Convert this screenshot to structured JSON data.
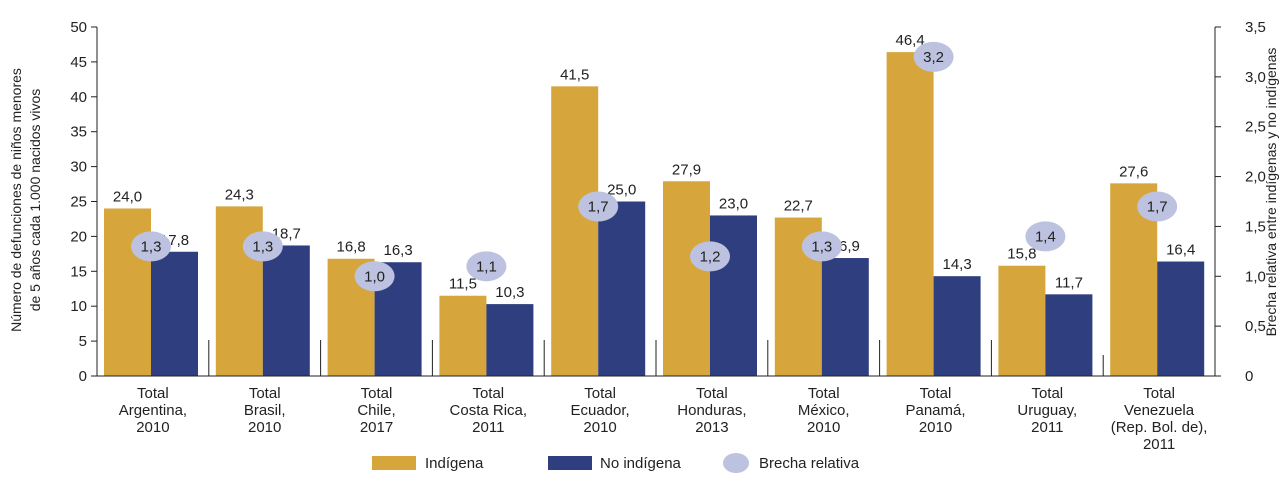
{
  "chart_data": {
    "type": "bar",
    "categories": [
      [
        "Total",
        "Argentina,",
        "2010"
      ],
      [
        "Total",
        "Brasil,",
        "2010"
      ],
      [
        "Total",
        "Chile,",
        "2017"
      ],
      [
        "Total",
        "Costa Rica,",
        "2011"
      ],
      [
        "Total",
        "Ecuador,",
        "2010"
      ],
      [
        "Total",
        "Honduras,",
        "2013"
      ],
      [
        "Total",
        "México,",
        "2010"
      ],
      [
        "Total",
        "Panamá,",
        "2010"
      ],
      [
        "Total",
        "Uruguay,",
        "2011"
      ],
      [
        "Total",
        "Venezuela",
        "(Rep. Bol. de),",
        "2011"
      ]
    ],
    "series": [
      {
        "name": "Indígena",
        "color": "#D6A63C",
        "values": [
          24.0,
          24.3,
          16.8,
          11.5,
          41.5,
          27.9,
          22.7,
          46.4,
          15.8,
          27.6
        ],
        "labels": [
          "24,0",
          "24,3",
          "16,8",
          "11,5",
          "41,5",
          "27,9",
          "22,7",
          "46,4",
          "15,8",
          "27,6"
        ]
      },
      {
        "name": "No indígena",
        "color": "#2F3E7E",
        "values": [
          17.8,
          18.7,
          16.3,
          10.3,
          25.0,
          23.0,
          16.9,
          14.3,
          11.7,
          16.4
        ],
        "labels": [
          "17,8",
          "18,7",
          "16,3",
          "10,3",
          "25,0",
          "23,0",
          "16,9",
          "14,3",
          "11,7",
          "16,4"
        ]
      },
      {
        "name": "Brecha relativa",
        "color": "#BCC2DF",
        "axis": "right",
        "values": [
          1.3,
          1.3,
          1.0,
          1.1,
          1.7,
          1.2,
          1.3,
          3.2,
          1.4,
          1.7
        ],
        "labels": [
          "1,3",
          "1,3",
          "1,0",
          "1,1",
          "1,7",
          "1,2",
          "1,3",
          "3,2",
          "1,4",
          "1,7"
        ]
      }
    ],
    "ylabel": [
      "Número de defunciones de niños menores",
      "de 5 años cada 1.000 nacidos vivos"
    ],
    "y2label": "Brecha relativa entre indígenas y no indígenas",
    "ylim": [
      0,
      50
    ],
    "y2lim": [
      0,
      3.5
    ],
    "yticks": [
      0,
      5,
      10,
      15,
      20,
      25,
      30,
      35,
      40,
      45,
      50
    ],
    "y2ticks": [
      "0",
      "0,5",
      "1,0",
      "1,5",
      "2,0",
      "2,5",
      "3,0",
      "3,5"
    ],
    "legend": "bottom",
    "grid": false
  }
}
